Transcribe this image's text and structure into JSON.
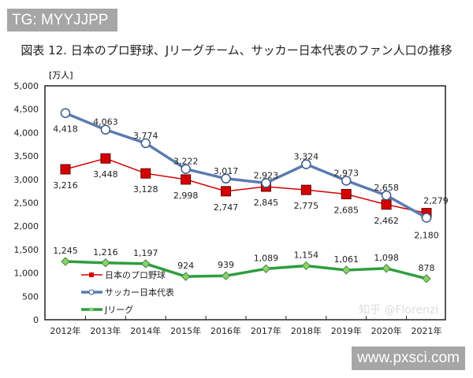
{
  "watermarks": {
    "top_left": "TG: MYYJJPP",
    "bottom_right": "www.pxsci.com",
    "faint": "知乎 @Florenzi"
  },
  "chart_data": {
    "type": "line",
    "title": "図表 12.  日本のプロ野球、Jリーグチーム、サッカー日本代表のファン人口の推移",
    "ylabel": "[万人]",
    "xlabel": "",
    "ylim": [
      0,
      5000
    ],
    "yticks": [
      "0",
      "500",
      "1,000",
      "1,500",
      "2,000",
      "2,500",
      "3,000",
      "3,500",
      "4,000",
      "4,500",
      "5,000"
    ],
    "categories": [
      "2012年",
      "2013年",
      "2014年",
      "2015年",
      "2016年",
      "2017年",
      "2018年",
      "2019年",
      "2020年",
      "2021年"
    ],
    "legend_position": "left-bottom inside",
    "grid": false,
    "series": [
      {
        "name": "日本のプロ野球",
        "color": "#d40000",
        "marker": "square",
        "values": [
          3216,
          3448,
          3128,
          2998,
          2747,
          2845,
          2775,
          2685,
          2462,
          2279
        ],
        "labels": [
          "3,216",
          "3,448",
          "3,128",
          "2,998",
          "2,747",
          "2,845",
          "2,775",
          "2,685",
          "2,462",
          "2,279"
        ]
      },
      {
        "name": "サッカー日本代表",
        "color": "#5b7bb0",
        "marker": "circle",
        "values": [
          4418,
          4063,
          3774,
          3222,
          3017,
          2923,
          3324,
          2973,
          2658,
          2180
        ],
        "labels": [
          "4,418",
          "4,063",
          "3,774",
          "3,222",
          "3,017",
          "2,923",
          "3,324",
          "2,973",
          "2,658",
          "2,180"
        ]
      },
      {
        "name": "Jリーグ",
        "color": "#2e9e3e",
        "marker": "diamond",
        "values": [
          1245,
          1216,
          1197,
          924,
          939,
          1089,
          1154,
          1061,
          1098,
          878
        ],
        "labels": [
          "1,245",
          "1,216",
          "1,197",
          "924",
          "939",
          "1,089",
          "1,154",
          "1,061",
          "1,098",
          "878"
        ]
      }
    ]
  }
}
